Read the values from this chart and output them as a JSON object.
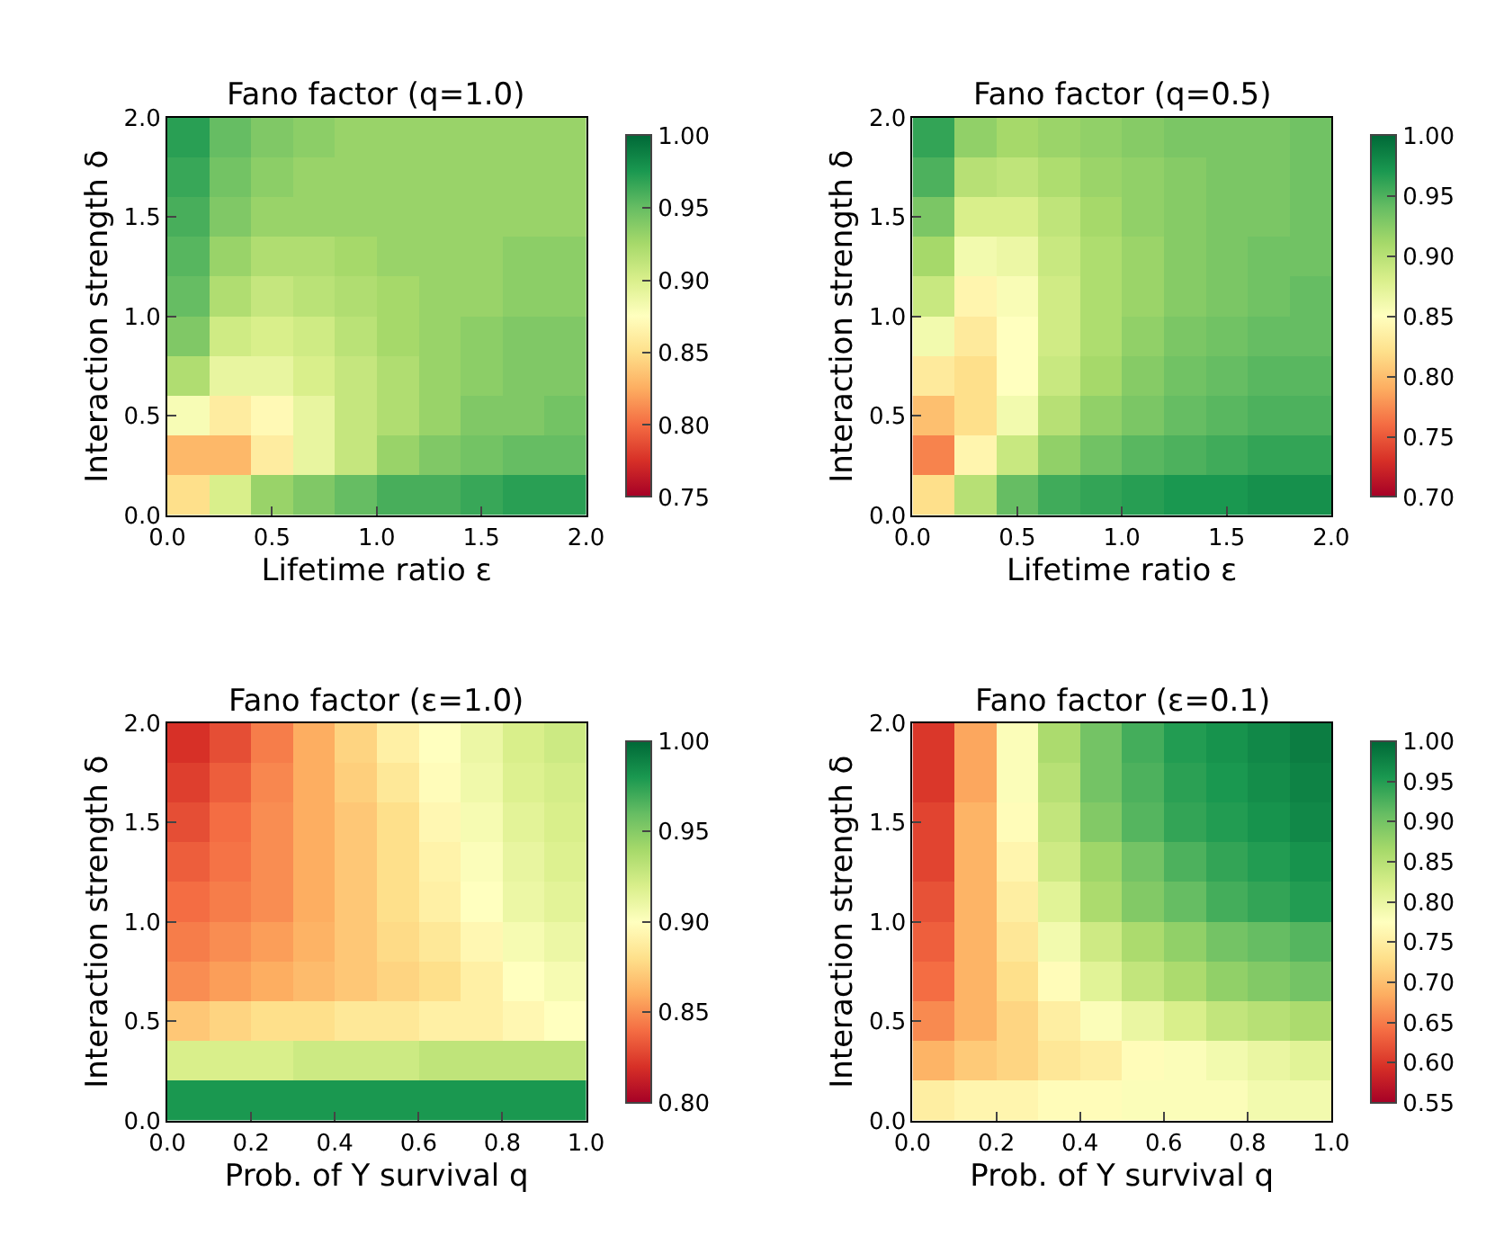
{
  "chart_data": [
    {
      "type": "heatmap",
      "title": "Fano factor (q=1.0)",
      "xlabel": "Lifetime ratio ε",
      "ylabel": "Interaction strength δ",
      "x": [
        0.1,
        0.3,
        0.5,
        0.7,
        0.9,
        1.1,
        1.3,
        1.5,
        1.7,
        1.9
      ],
      "y": [
        1.9,
        1.7,
        1.5,
        1.3,
        1.1,
        0.9,
        0.7,
        0.5,
        0.3,
        0.1
      ],
      "cells": [
        [
          0.97,
          0.95,
          0.94,
          0.935,
          0.93,
          0.93,
          0.93,
          0.93,
          0.93,
          0.93
        ],
        [
          0.965,
          0.945,
          0.935,
          0.93,
          0.93,
          0.93,
          0.93,
          0.93,
          0.93,
          0.93
        ],
        [
          0.96,
          0.94,
          0.93,
          0.93,
          0.93,
          0.93,
          0.93,
          0.93,
          0.93,
          0.93
        ],
        [
          0.955,
          0.93,
          0.92,
          0.92,
          0.925,
          0.93,
          0.93,
          0.93,
          0.935,
          0.935
        ],
        [
          0.95,
          0.92,
          0.91,
          0.915,
          0.92,
          0.925,
          0.93,
          0.93,
          0.935,
          0.935
        ],
        [
          0.94,
          0.905,
          0.9,
          0.905,
          0.915,
          0.925,
          0.93,
          0.935,
          0.94,
          0.94
        ],
        [
          0.92,
          0.89,
          0.89,
          0.9,
          0.91,
          0.92,
          0.93,
          0.935,
          0.94,
          0.94
        ],
        [
          0.88,
          0.86,
          0.87,
          0.89,
          0.91,
          0.92,
          0.93,
          0.94,
          0.94,
          0.945
        ],
        [
          0.83,
          0.83,
          0.86,
          0.89,
          0.91,
          0.93,
          0.94,
          0.945,
          0.95,
          0.95
        ],
        [
          0.85,
          0.9,
          0.93,
          0.94,
          0.95,
          0.96,
          0.96,
          0.965,
          0.97,
          0.97
        ]
      ],
      "xlim": [
        0,
        2
      ],
      "ylim": [
        0,
        2
      ],
      "xticks": [
        {
          "value": 0,
          "label": "0.0"
        },
        {
          "value": 0.5,
          "label": "0.5"
        },
        {
          "value": 1,
          "label": "1.0"
        },
        {
          "value": 1.5,
          "label": "1.5"
        },
        {
          "value": 2,
          "label": "2.0"
        }
      ],
      "yticks": [
        {
          "value": 0,
          "label": "0.0"
        },
        {
          "value": 0.5,
          "label": "0.5"
        },
        {
          "value": 1,
          "label": "1.0"
        },
        {
          "value": 1.5,
          "label": "1.5"
        },
        {
          "value": 2,
          "label": "2.0"
        }
      ],
      "clim": [
        0.75,
        1.0
      ],
      "cticks": [
        0.75,
        {
          "value": 0.8,
          "label": "0.80"
        },
        0.85,
        {
          "value": 0.9,
          "label": "0.90"
        },
        0.95,
        {
          "value": 1,
          "label": "1.00"
        }
      ]
    },
    {
      "type": "heatmap",
      "title": "Fano factor (q=0.5)",
      "xlabel": "Lifetime ratio ε",
      "ylabel": "Interaction strength δ",
      "x": [
        0.1,
        0.3,
        0.5,
        0.7,
        0.9,
        1.1,
        1.3,
        1.5,
        1.7,
        1.9
      ],
      "y": [
        1.9,
        1.7,
        1.5,
        1.3,
        1.1,
        0.9,
        0.7,
        0.5,
        0.3,
        0.1
      ],
      "cells": [
        [
          0.96,
          0.92,
          0.91,
          0.915,
          0.92,
          0.925,
          0.93,
          0.93,
          0.93,
          0.935
        ],
        [
          0.95,
          0.9,
          0.895,
          0.905,
          0.915,
          0.92,
          0.925,
          0.93,
          0.93,
          0.935
        ],
        [
          0.93,
          0.88,
          0.88,
          0.895,
          0.91,
          0.92,
          0.925,
          0.93,
          0.93,
          0.935
        ],
        [
          0.91,
          0.86,
          0.865,
          0.89,
          0.905,
          0.915,
          0.925,
          0.93,
          0.935,
          0.935
        ],
        [
          0.89,
          0.84,
          0.855,
          0.885,
          0.905,
          0.915,
          0.925,
          0.93,
          0.935,
          0.94
        ],
        [
          0.86,
          0.83,
          0.85,
          0.885,
          0.905,
          0.92,
          0.93,
          0.935,
          0.94,
          0.94
        ],
        [
          0.83,
          0.82,
          0.85,
          0.89,
          0.91,
          0.925,
          0.935,
          0.94,
          0.945,
          0.945
        ],
        [
          0.8,
          0.82,
          0.86,
          0.9,
          0.92,
          0.93,
          0.94,
          0.945,
          0.95,
          0.95
        ],
        [
          0.77,
          0.84,
          0.89,
          0.92,
          0.935,
          0.945,
          0.95,
          0.955,
          0.96,
          0.96
        ],
        [
          0.82,
          0.9,
          0.94,
          0.955,
          0.96,
          0.965,
          0.97,
          0.97,
          0.975,
          0.975
        ]
      ],
      "xlim": [
        0,
        2
      ],
      "ylim": [
        0,
        2
      ],
      "xticks": [
        {
          "value": 0,
          "label": "0.0"
        },
        {
          "value": 0.5,
          "label": "0.5"
        },
        {
          "value": 1,
          "label": "1.0"
        },
        {
          "value": 1.5,
          "label": "1.5"
        },
        {
          "value": 2,
          "label": "2.0"
        }
      ],
      "yticks": [
        {
          "value": 0,
          "label": "0.0"
        },
        {
          "value": 0.5,
          "label": "0.5"
        },
        {
          "value": 1,
          "label": "1.0"
        },
        {
          "value": 1.5,
          "label": "1.5"
        },
        {
          "value": 2,
          "label": "2.0"
        }
      ],
      "clim": [
        0.7,
        1.0
      ],
      "cticks": [
        {
          "value": 0.7,
          "label": "0.70"
        },
        0.75,
        {
          "value": 0.8,
          "label": "0.80"
        },
        0.85,
        {
          "value": 0.9,
          "label": "0.90"
        },
        0.95,
        {
          "value": 1,
          "label": "1.00"
        }
      ]
    },
    {
      "type": "heatmap",
      "title": "Fano factor (ε=1.0)",
      "xlabel": "Prob. of Y survival q",
      "ylabel": "Interaction strength δ",
      "x": [
        0.05,
        0.15,
        0.25,
        0.35,
        0.45,
        0.55,
        0.65,
        0.75,
        0.85,
        0.95
      ],
      "y": [
        1.9,
        1.7,
        1.5,
        1.3,
        1.1,
        0.9,
        0.7,
        0.5,
        0.3,
        0.1
      ],
      "cells": [
        [
          0.82,
          0.83,
          0.845,
          0.86,
          0.875,
          0.89,
          0.9,
          0.91,
          0.92,
          0.925
        ],
        [
          0.825,
          0.835,
          0.848,
          0.86,
          0.873,
          0.885,
          0.898,
          0.908,
          0.918,
          0.922
        ],
        [
          0.83,
          0.84,
          0.85,
          0.86,
          0.87,
          0.88,
          0.895,
          0.905,
          0.915,
          0.92
        ],
        [
          0.835,
          0.842,
          0.85,
          0.86,
          0.87,
          0.88,
          0.892,
          0.902,
          0.912,
          0.918
        ],
        [
          0.84,
          0.845,
          0.85,
          0.86,
          0.87,
          0.88,
          0.89,
          0.9,
          0.91,
          0.915
        ],
        [
          0.845,
          0.85,
          0.855,
          0.862,
          0.87,
          0.878,
          0.885,
          0.895,
          0.905,
          0.91
        ],
        [
          0.85,
          0.855,
          0.86,
          0.865,
          0.87,
          0.875,
          0.88,
          0.89,
          0.9,
          0.905
        ],
        [
          0.87,
          0.875,
          0.88,
          0.88,
          0.885,
          0.885,
          0.89,
          0.89,
          0.895,
          0.9
        ],
        [
          0.92,
          0.92,
          0.92,
          0.925,
          0.925,
          0.925,
          0.93,
          0.93,
          0.93,
          0.93
        ],
        [
          0.98,
          0.98,
          0.98,
          0.98,
          0.98,
          0.98,
          0.98,
          0.98,
          0.98,
          0.98
        ]
      ],
      "xlim": [
        0,
        1
      ],
      "ylim": [
        0,
        2
      ],
      "xticks": [
        {
          "value": 0,
          "label": "0.0"
        },
        0.2,
        0.4,
        0.6,
        0.8,
        {
          "value": 1,
          "label": "1.0"
        }
      ],
      "yticks": [
        {
          "value": 0,
          "label": "0.0"
        },
        {
          "value": 0.5,
          "label": "0.5"
        },
        {
          "value": 1,
          "label": "1.0"
        },
        {
          "value": 1.5,
          "label": "1.5"
        },
        {
          "value": 2,
          "label": "2.0"
        }
      ],
      "clim": [
        0.8,
        1.0
      ],
      "cticks": [
        {
          "value": 0.8,
          "label": "0.80"
        },
        0.85,
        {
          "value": 0.9,
          "label": "0.90"
        },
        0.95,
        {
          "value": 1,
          "label": "1.00"
        }
      ]
    },
    {
      "type": "heatmap",
      "title": "Fano factor (ε=0.1)",
      "xlabel": "Prob. of Y survival q",
      "ylabel": "Interaction strength δ",
      "x": [
        0.05,
        0.15,
        0.25,
        0.35,
        0.45,
        0.55,
        0.65,
        0.75,
        0.85,
        0.95
      ],
      "y": [
        1.9,
        1.7,
        1.5,
        1.3,
        1.1,
        0.9,
        0.7,
        0.5,
        0.3,
        0.1
      ],
      "cells": [
        [
          0.6,
          0.68,
          0.78,
          0.86,
          0.9,
          0.93,
          0.95,
          0.96,
          0.97,
          0.98
        ],
        [
          0.6,
          0.68,
          0.78,
          0.85,
          0.9,
          0.925,
          0.945,
          0.955,
          0.965,
          0.975
        ],
        [
          0.61,
          0.69,
          0.77,
          0.84,
          0.89,
          0.92,
          0.94,
          0.95,
          0.96,
          0.97
        ],
        [
          0.61,
          0.69,
          0.76,
          0.83,
          0.87,
          0.9,
          0.925,
          0.94,
          0.95,
          0.96
        ],
        [
          0.62,
          0.69,
          0.75,
          0.81,
          0.86,
          0.89,
          0.91,
          0.93,
          0.94,
          0.95
        ],
        [
          0.63,
          0.69,
          0.74,
          0.79,
          0.83,
          0.86,
          0.88,
          0.9,
          0.91,
          0.92
        ],
        [
          0.64,
          0.69,
          0.73,
          0.77,
          0.81,
          0.84,
          0.86,
          0.88,
          0.89,
          0.9
        ],
        [
          0.66,
          0.69,
          0.72,
          0.75,
          0.78,
          0.8,
          0.82,
          0.84,
          0.85,
          0.86
        ],
        [
          0.69,
          0.71,
          0.72,
          0.74,
          0.75,
          0.77,
          0.78,
          0.79,
          0.8,
          0.81
        ],
        [
          0.75,
          0.76,
          0.76,
          0.77,
          0.77,
          0.78,
          0.78,
          0.78,
          0.79,
          0.79
        ]
      ],
      "xlim": [
        0,
        1
      ],
      "ylim": [
        0,
        2
      ],
      "xticks": [
        {
          "value": 0,
          "label": "0.0"
        },
        0.2,
        0.4,
        0.6,
        0.8,
        {
          "value": 1,
          "label": "1.0"
        }
      ],
      "yticks": [
        {
          "value": 0,
          "label": "0.0"
        },
        {
          "value": 0.5,
          "label": "0.5"
        },
        {
          "value": 1,
          "label": "1.0"
        },
        {
          "value": 1.5,
          "label": "1.5"
        },
        {
          "value": 2,
          "label": "2.0"
        }
      ],
      "clim": [
        0.55,
        1.0
      ],
      "cticks": [
        0.55,
        {
          "value": 0.6,
          "label": "0.60"
        },
        0.65,
        {
          "value": 0.7,
          "label": "0.70"
        },
        0.75,
        {
          "value": 0.8,
          "label": "0.80"
        },
        0.85,
        {
          "value": 0.9,
          "label": "0.90"
        },
        0.95,
        {
          "value": 1,
          "label": "1.00"
        }
      ]
    }
  ]
}
